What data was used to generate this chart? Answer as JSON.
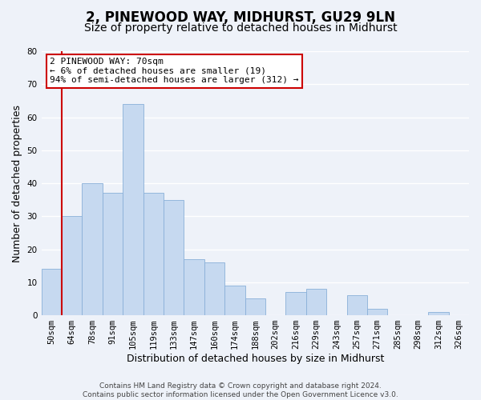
{
  "title": "2, PINEWOOD WAY, MIDHURST, GU29 9LN",
  "subtitle": "Size of property relative to detached houses in Midhurst",
  "xlabel": "Distribution of detached houses by size in Midhurst",
  "ylabel": "Number of detached properties",
  "bar_labels": [
    "50sqm",
    "64sqm",
    "78sqm",
    "91sqm",
    "105sqm",
    "119sqm",
    "133sqm",
    "147sqm",
    "160sqm",
    "174sqm",
    "188sqm",
    "202sqm",
    "216sqm",
    "229sqm",
    "243sqm",
    "257sqm",
    "271sqm",
    "285sqm",
    "298sqm",
    "312sqm",
    "326sqm"
  ],
  "bar_values": [
    14,
    30,
    40,
    37,
    64,
    37,
    35,
    17,
    16,
    9,
    5,
    0,
    7,
    8,
    0,
    6,
    2,
    0,
    0,
    1,
    0
  ],
  "bar_color": "#c6d9f0",
  "bar_edge_color": "#8ab0d8",
  "highlight_line_index": 1,
  "highlight_color": "#cc0000",
  "ylim": [
    0,
    80
  ],
  "yticks": [
    0,
    10,
    20,
    30,
    40,
    50,
    60,
    70,
    80
  ],
  "annotation_box_text": "2 PINEWOOD WAY: 70sqm\n← 6% of detached houses are smaller (19)\n94% of semi-detached houses are larger (312) →",
  "footer_line1": "Contains HM Land Registry data © Crown copyright and database right 2024.",
  "footer_line2": "Contains public sector information licensed under the Open Government Licence v3.0.",
  "background_color": "#eef2f9",
  "grid_color": "#ffffff",
  "title_fontsize": 12,
  "subtitle_fontsize": 10,
  "axis_label_fontsize": 9,
  "tick_fontsize": 7.5,
  "footer_fontsize": 6.5
}
